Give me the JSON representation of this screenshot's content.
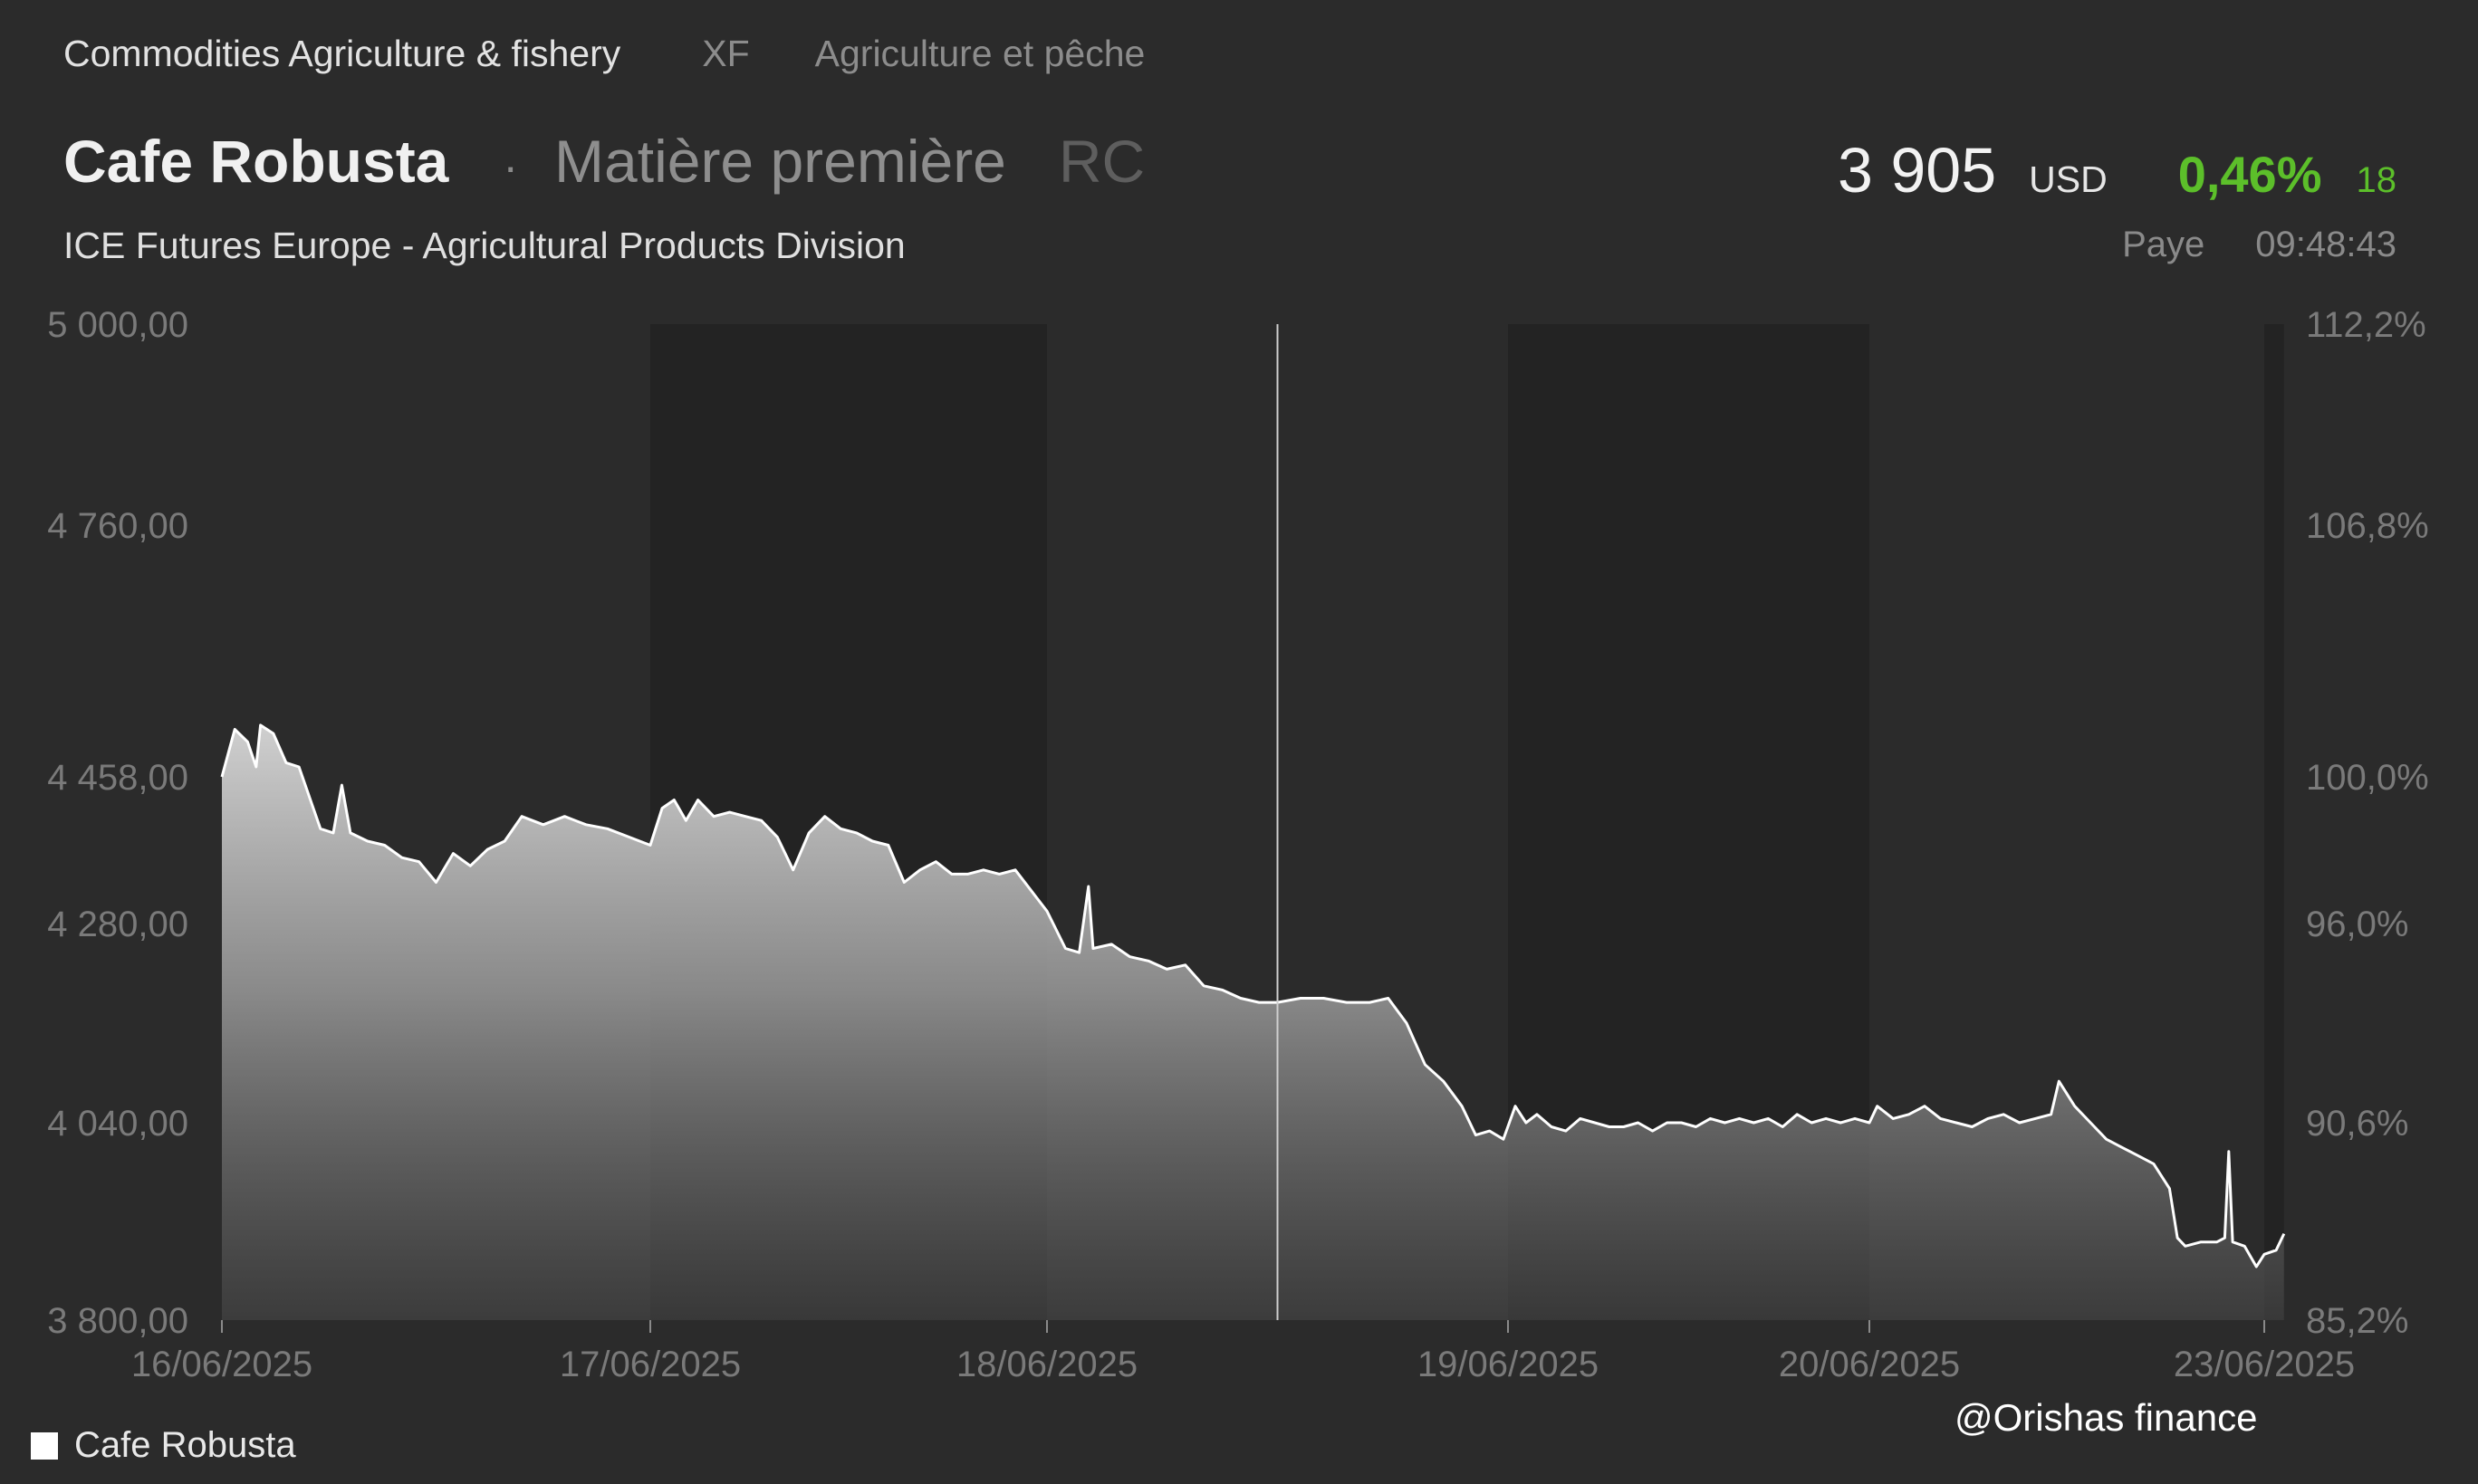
{
  "breadcrumb": {
    "category": "Commodities Agriculture & fishery",
    "code": "XF",
    "category_fr": "Agriculture et pêche"
  },
  "instrument": {
    "name": "Cafe Robusta",
    "separator": "·",
    "type": "Matière première",
    "ticker": "RC",
    "exchange": "ICE Futures Europe - Agricultural Products Division"
  },
  "quote": {
    "price": "3 905",
    "currency": "USD",
    "change_pct": "0,46%",
    "change_abs": "18",
    "status": "Paye",
    "time": "09:48:43"
  },
  "colors": {
    "background": "#2b2b2b",
    "shaded_band": "#232323",
    "line": "#ffffff",
    "positive": "#5cbf2a"
  },
  "chart_data": {
    "type": "area",
    "ylim": [
      3800,
      5000
    ],
    "y_ticks": [
      5000,
      4760,
      4458,
      4280,
      4040,
      3800
    ],
    "y_tick_labels": [
      "5 000,00",
      "4 760,00",
      "4 458,00",
      "4 280,00",
      "4 040,00",
      "3 800,00"
    ],
    "y2_tick_labels": [
      "112,2%",
      "106,8%",
      "100,0%",
      "96,0%",
      "90,6%",
      "85,2%"
    ],
    "x_tick_labels": [
      "16/06/2025",
      "17/06/2025",
      "18/06/2025",
      "19/06/2025",
      "20/06/2025",
      "23/06/2025"
    ],
    "x_tick_pos": [
      0,
      1,
      2,
      3,
      4,
      5
    ],
    "x_range": [
      0,
      5.05
    ],
    "shaded_sessions": [
      [
        1,
        2
      ],
      [
        3,
        4
      ],
      [
        5,
        5.05
      ]
    ],
    "crosshair_x": 2.5,
    "grid": false,
    "legend": "bottom-left",
    "series": [
      {
        "name": "Cafe Robusta",
        "points": [
          [
            0.0,
            4458
          ],
          [
            0.03,
            4515
          ],
          [
            0.06,
            4500
          ],
          [
            0.08,
            4470
          ],
          [
            0.09,
            4520
          ],
          [
            0.12,
            4510
          ],
          [
            0.15,
            4475
          ],
          [
            0.18,
            4470
          ],
          [
            0.2,
            4440
          ],
          [
            0.23,
            4395
          ],
          [
            0.26,
            4390
          ],
          [
            0.28,
            4448
          ],
          [
            0.3,
            4390
          ],
          [
            0.34,
            4380
          ],
          [
            0.38,
            4375
          ],
          [
            0.42,
            4360
          ],
          [
            0.46,
            4355
          ],
          [
            0.5,
            4330
          ],
          [
            0.54,
            4365
          ],
          [
            0.58,
            4350
          ],
          [
            0.62,
            4370
          ],
          [
            0.66,
            4380
          ],
          [
            0.7,
            4410
          ],
          [
            0.75,
            4400
          ],
          [
            0.8,
            4410
          ],
          [
            0.85,
            4400
          ],
          [
            0.9,
            4395
          ],
          [
            0.95,
            4385
          ],
          [
            1.0,
            4375
          ],
          [
            1.03,
            4420
          ],
          [
            1.06,
            4430
          ],
          [
            1.09,
            4405
          ],
          [
            1.12,
            4430
          ],
          [
            1.16,
            4410
          ],
          [
            1.2,
            4415
          ],
          [
            1.24,
            4410
          ],
          [
            1.28,
            4405
          ],
          [
            1.32,
            4385
          ],
          [
            1.36,
            4345
          ],
          [
            1.4,
            4390
          ],
          [
            1.44,
            4410
          ],
          [
            1.48,
            4395
          ],
          [
            1.52,
            4390
          ],
          [
            1.56,
            4380
          ],
          [
            1.6,
            4375
          ],
          [
            1.64,
            4330
          ],
          [
            1.68,
            4345
          ],
          [
            1.72,
            4355
          ],
          [
            1.76,
            4340
          ],
          [
            1.8,
            4340
          ],
          [
            1.84,
            4345
          ],
          [
            1.88,
            4340
          ],
          [
            1.92,
            4345
          ],
          [
            1.96,
            4320
          ],
          [
            2.0,
            4295
          ],
          [
            2.04,
            4250
          ],
          [
            2.07,
            4245
          ],
          [
            2.09,
            4325
          ],
          [
            2.1,
            4250
          ],
          [
            2.14,
            4255
          ],
          [
            2.18,
            4240
          ],
          [
            2.22,
            4235
          ],
          [
            2.26,
            4225
          ],
          [
            2.3,
            4230
          ],
          [
            2.34,
            4205
          ],
          [
            2.38,
            4200
          ],
          [
            2.42,
            4190
          ],
          [
            2.46,
            4185
          ],
          [
            2.5,
            4185
          ],
          [
            2.55,
            4190
          ],
          [
            2.6,
            4190
          ],
          [
            2.65,
            4185
          ],
          [
            2.7,
            4185
          ],
          [
            2.74,
            4190
          ],
          [
            2.78,
            4160
          ],
          [
            2.82,
            4110
          ],
          [
            2.86,
            4090
          ],
          [
            2.9,
            4060
          ],
          [
            2.93,
            4025
          ],
          [
            2.96,
            4030
          ],
          [
            2.99,
            4020
          ],
          [
            3.02,
            4060
          ],
          [
            3.05,
            4040
          ],
          [
            3.08,
            4050
          ],
          [
            3.12,
            4035
          ],
          [
            3.16,
            4030
          ],
          [
            3.2,
            4045
          ],
          [
            3.24,
            4040
          ],
          [
            3.28,
            4035
          ],
          [
            3.32,
            4035
          ],
          [
            3.36,
            4040
          ],
          [
            3.4,
            4030
          ],
          [
            3.44,
            4040
          ],
          [
            3.48,
            4040
          ],
          [
            3.52,
            4035
          ],
          [
            3.56,
            4045
          ],
          [
            3.6,
            4040
          ],
          [
            3.64,
            4045
          ],
          [
            3.68,
            4040
          ],
          [
            3.72,
            4045
          ],
          [
            3.76,
            4035
          ],
          [
            3.8,
            4050
          ],
          [
            3.84,
            4040
          ],
          [
            3.88,
            4045
          ],
          [
            3.92,
            4040
          ],
          [
            3.96,
            4045
          ],
          [
            4.0,
            4040
          ],
          [
            4.02,
            4060
          ],
          [
            4.06,
            4045
          ],
          [
            4.1,
            4050
          ],
          [
            4.14,
            4060
          ],
          [
            4.18,
            4045
          ],
          [
            4.22,
            4040
          ],
          [
            4.26,
            4035
          ],
          [
            4.3,
            4045
          ],
          [
            4.34,
            4050
          ],
          [
            4.38,
            4040
          ],
          [
            4.42,
            4045
          ],
          [
            4.46,
            4050
          ],
          [
            4.48,
            4090
          ],
          [
            4.52,
            4060
          ],
          [
            4.56,
            4040
          ],
          [
            4.6,
            4020
          ],
          [
            4.64,
            4010
          ],
          [
            4.68,
            4000
          ],
          [
            4.72,
            3990
          ],
          [
            4.76,
            3960
          ],
          [
            4.78,
            3900
          ],
          [
            4.8,
            3890
          ],
          [
            4.84,
            3895
          ],
          [
            4.88,
            3895
          ],
          [
            4.9,
            3900
          ],
          [
            4.91,
            4005
          ],
          [
            4.92,
            3895
          ],
          [
            4.95,
            3890
          ],
          [
            4.98,
            3865
          ],
          [
            5.0,
            3880
          ],
          [
            5.03,
            3885
          ],
          [
            5.05,
            3905
          ]
        ]
      }
    ]
  },
  "watermark": "@Orishas finance"
}
